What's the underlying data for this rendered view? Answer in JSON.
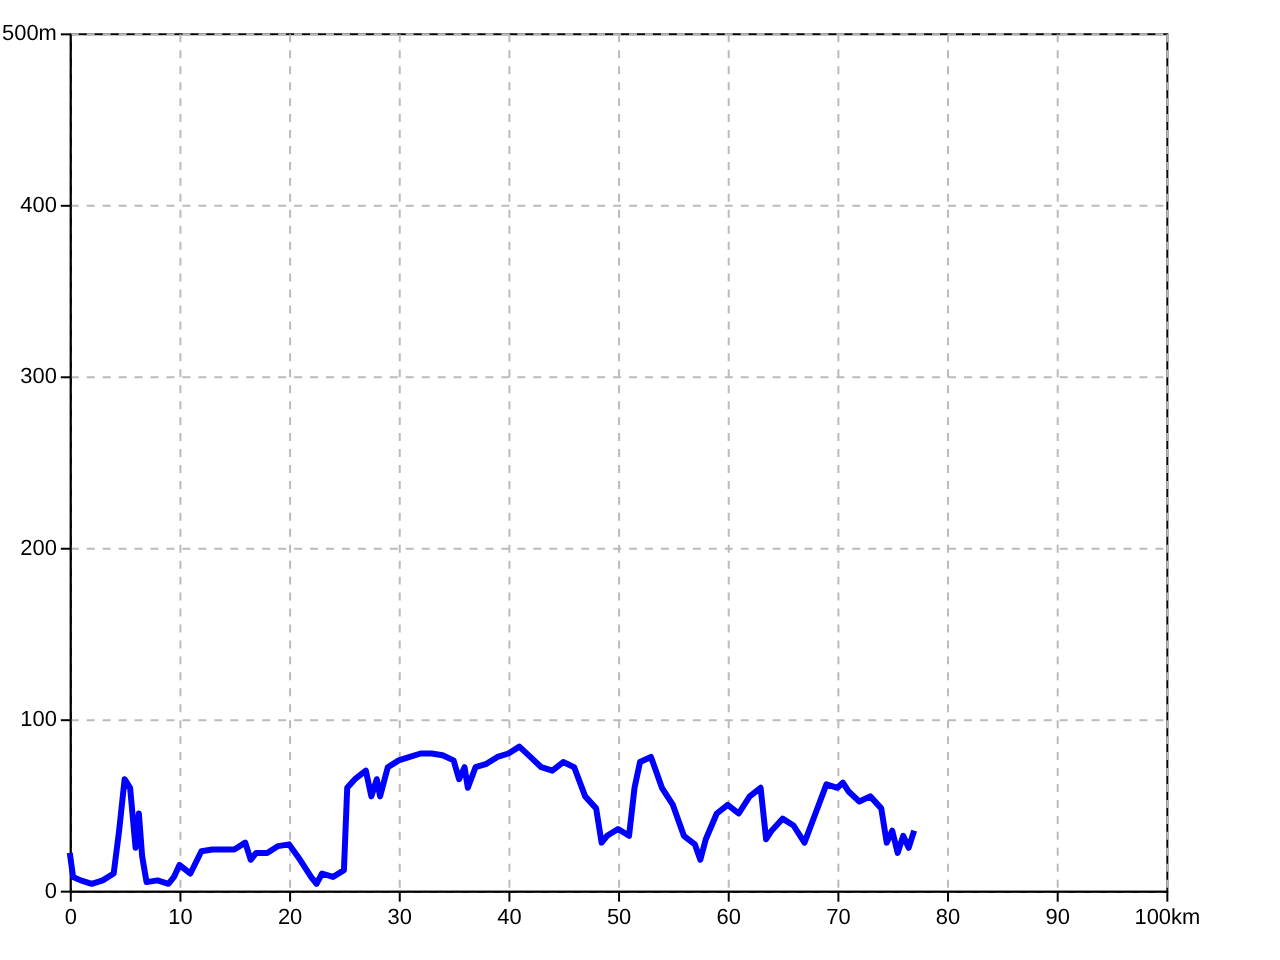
{
  "chart_data": {
    "type": "line",
    "x": [
      0,
      0.3,
      1,
      2,
      3,
      4,
      4.5,
      5,
      5.5,
      6,
      6.3,
      6.6,
      7,
      8,
      9,
      9.5,
      10,
      11,
      12,
      13,
      14,
      15,
      16,
      16.5,
      17,
      18,
      19,
      20,
      21,
      22,
      22.5,
      23,
      24,
      25,
      25.3,
      26,
      27,
      27.5,
      28,
      28.3,
      29,
      30,
      31,
      32,
      33,
      34,
      35,
      35.5,
      36,
      36.3,
      37,
      38,
      39,
      40,
      41,
      42,
      43,
      44,
      45,
      46,
      47,
      48,
      48.5,
      49,
      50,
      51,
      51.5,
      52,
      53,
      54,
      55,
      56,
      57,
      57.5,
      58,
      59,
      60,
      61,
      62,
      63,
      63.5,
      64,
      65,
      66,
      67,
      68,
      69,
      70,
      70.5,
      71,
      72,
      73,
      74,
      74.5,
      75,
      75.5,
      76,
      76.5,
      77
    ],
    "series": [
      {
        "color": "#0000ff",
        "values": [
          22,
          8,
          6,
          4,
          6,
          10,
          35,
          65,
          60,
          25,
          45,
          20,
          5,
          6,
          4,
          8,
          15,
          10,
          23,
          24,
          24,
          24,
          28,
          18,
          22,
          22,
          26,
          27,
          18,
          8,
          4,
          10,
          8,
          12,
          60,
          65,
          70,
          55,
          65,
          55,
          72,
          76,
          78,
          80,
          80,
          79,
          76,
          65,
          72,
          60,
          72,
          74,
          78,
          80,
          84,
          78,
          72,
          70,
          75,
          72,
          55,
          48,
          28,
          32,
          36,
          32,
          60,
          75,
          78,
          60,
          50,
          32,
          27,
          18,
          30,
          45,
          50,
          45,
          55,
          60,
          30,
          35,
          42,
          38,
          28,
          45,
          62,
          60,
          63,
          58,
          52,
          55,
          48,
          28,
          35,
          22,
          32,
          25,
          35
        ]
      }
    ],
    "xlim": [
      0,
      100
    ],
    "ylim": [
      0,
      500
    ],
    "xticks": [
      0,
      10,
      20,
      30,
      40,
      50,
      60,
      70,
      80,
      90,
      {
        "value": 100,
        "label": "100km"
      }
    ],
    "yticks": [
      0,
      100,
      200,
      300,
      400,
      {
        "value": 500,
        "label": "500m"
      }
    ],
    "grid": true,
    "marker": "none",
    "line_style": "solid"
  }
}
